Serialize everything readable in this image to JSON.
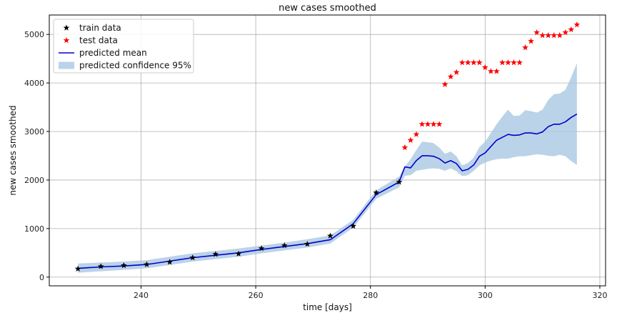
{
  "chart_data": {
    "type": "line",
    "title": "new cases smoothed",
    "xlabel": "time [days]",
    "ylabel": "new cases smoothed",
    "xlim": [
      224,
      321
    ],
    "ylim": [
      -180,
      5400
    ],
    "xticks": [
      240,
      260,
      280,
      300,
      320
    ],
    "yticks": [
      0,
      1000,
      2000,
      3000,
      4000,
      5000
    ],
    "grid": true,
    "legend_placement": "top-left",
    "series": [
      {
        "name": "train data",
        "kind": "scatter",
        "marker": "star",
        "color": "#000000",
        "x": [
          229,
          233,
          237,
          241,
          245,
          249,
          253,
          257,
          261,
          265,
          269,
          273,
          277,
          281,
          285
        ],
        "y": [
          170,
          220,
          240,
          260,
          310,
          400,
          470,
          480,
          590,
          650,
          680,
          850,
          1050,
          1740,
          1960
        ]
      },
      {
        "name": "test data",
        "kind": "scatter",
        "marker": "star",
        "color": "#ff0000",
        "x": [
          286,
          287,
          288,
          289,
          290,
          291,
          292,
          293,
          294,
          295,
          296,
          297,
          298,
          299,
          300,
          301,
          302,
          303,
          304,
          305,
          306,
          307,
          308,
          309,
          310,
          311,
          312,
          313,
          314,
          315,
          316
        ],
        "y": [
          2670,
          2820,
          2940,
          3150,
          3150,
          3150,
          3150,
          3970,
          4130,
          4220,
          4420,
          4420,
          4420,
          4420,
          4320,
          4240,
          4240,
          4420,
          4420,
          4420,
          4420,
          4730,
          4860,
          5040,
          4980,
          4980,
          4980,
          4980,
          5040,
          5100,
          5200
        ]
      },
      {
        "name": "predicted mean",
        "kind": "line",
        "color": "#0000cc",
        "x": [
          229,
          233,
          237,
          241,
          245,
          249,
          253,
          257,
          261,
          265,
          269,
          273,
          277,
          281,
          285,
          286,
          287,
          288,
          289,
          290,
          291,
          292,
          293,
          294,
          295,
          296,
          297,
          298,
          299,
          300,
          301,
          302,
          303,
          304,
          305,
          306,
          307,
          308,
          309,
          310,
          311,
          312,
          313,
          314,
          315,
          316
        ],
        "y": [
          180,
          210,
          230,
          260,
          330,
          400,
          450,
          500,
          570,
          630,
          690,
          770,
          1100,
          1700,
          1960,
          2270,
          2250,
          2400,
          2500,
          2500,
          2490,
          2440,
          2350,
          2400,
          2340,
          2190,
          2220,
          2310,
          2490,
          2560,
          2690,
          2820,
          2880,
          2940,
          2920,
          2930,
          2970,
          2970,
          2950,
          2990,
          3100,
          3150,
          3150,
          3200,
          3290,
          3360
        ]
      },
      {
        "name": "predicted confidence 95%",
        "kind": "band",
        "color": "#aac8e2",
        "x": [
          229,
          233,
          237,
          241,
          245,
          249,
          253,
          257,
          261,
          265,
          269,
          273,
          277,
          281,
          285,
          286,
          287,
          288,
          289,
          290,
          291,
          292,
          293,
          294,
          295,
          296,
          297,
          298,
          299,
          300,
          301,
          302,
          303,
          304,
          305,
          306,
          307,
          308,
          309,
          310,
          311,
          312,
          313,
          314,
          315,
          316
        ],
        "lower": [
          90,
          120,
          150,
          180,
          250,
          320,
          370,
          420,
          490,
          550,
          610,
          690,
          1020,
          1610,
          1850,
          2090,
          2100,
          2190,
          2210,
          2230,
          2240,
          2230,
          2190,
          2240,
          2180,
          2080,
          2100,
          2190,
          2300,
          2360,
          2400,
          2430,
          2440,
          2440,
          2470,
          2490,
          2490,
          2510,
          2530,
          2520,
          2500,
          2490,
          2520,
          2490,
          2390,
          2310
        ],
        "upper": [
          280,
          300,
          320,
          350,
          420,
          490,
          540,
          590,
          650,
          710,
          780,
          860,
          1180,
          1790,
          2070,
          2280,
          2430,
          2620,
          2790,
          2780,
          2760,
          2670,
          2540,
          2590,
          2490,
          2300,
          2350,
          2460,
          2680,
          2790,
          2970,
          3150,
          3310,
          3450,
          3320,
          3330,
          3440,
          3420,
          3390,
          3450,
          3650,
          3770,
          3780,
          3860,
          4120,
          4410
        ]
      }
    ]
  }
}
